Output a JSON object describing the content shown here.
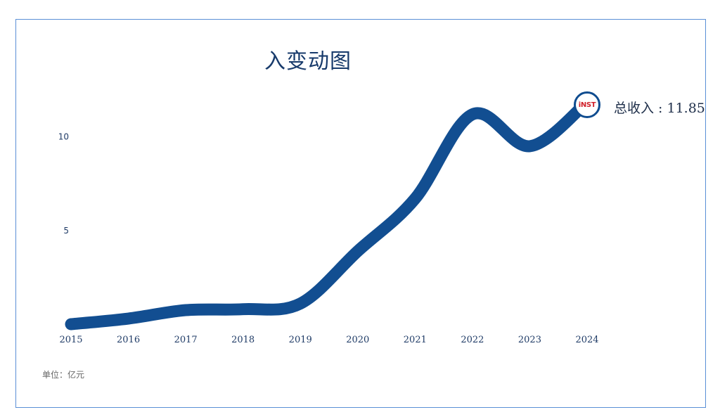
{
  "chart_data": {
    "type": "line",
    "title": "入变动图",
    "unit_label": "单位：亿元",
    "x": [
      "2015",
      "2016",
      "2017",
      "2018",
      "2019",
      "2020",
      "2021",
      "2022",
      "2023",
      "2024"
    ],
    "series": [
      {
        "values": [
          0.0,
          0.3,
          0.75,
          0.8,
          1.1,
          3.9,
          6.7,
          11.2,
          9.5,
          11.85
        ]
      }
    ],
    "yticks": [
      5,
      10
    ],
    "ylim": [
      0,
      12.5
    ],
    "annotation": {
      "label": "总收入",
      "value": "11.85"
    },
    "badge_text": "iNST",
    "line_color": "#124e91",
    "grid": false
  }
}
